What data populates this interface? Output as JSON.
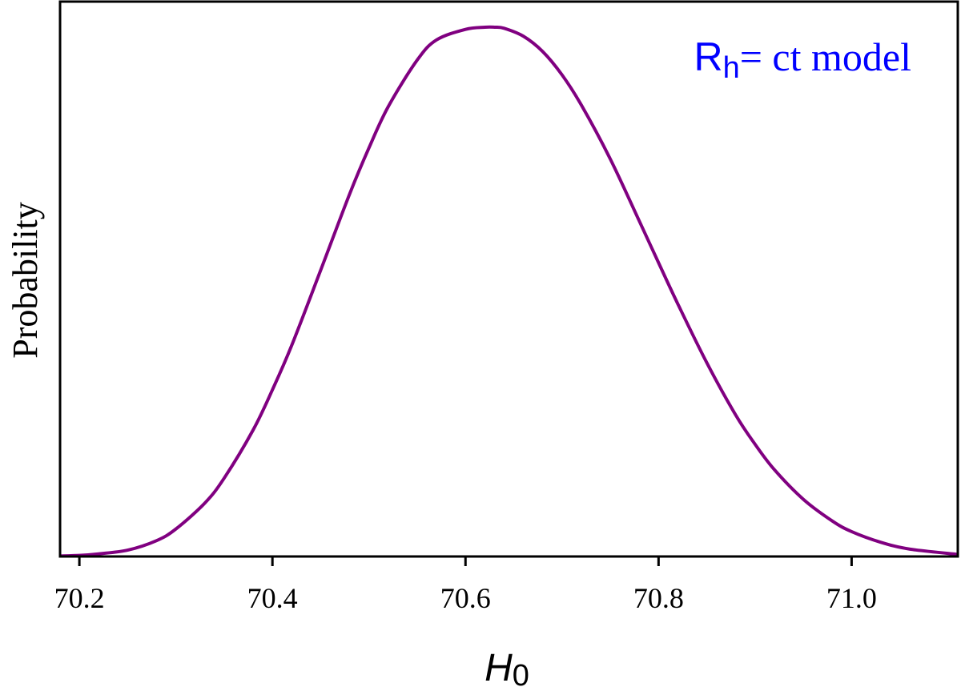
{
  "chart_data": {
    "type": "line",
    "title": "",
    "xlabel": "H",
    "xlabel_sub": "0",
    "ylabel": "Probability",
    "xlim": [
      70.18,
      71.11
    ],
    "ylim": [
      0,
      1.0
    ],
    "xticks": [
      70.2,
      70.4,
      70.6,
      70.8,
      71.0
    ],
    "xtick_labels": [
      "70.2",
      "70.4",
      "70.6",
      "70.8",
      "71.0"
    ],
    "yticks_shown": false,
    "grid": false,
    "legend": "none",
    "annotation": {
      "prefix": "R",
      "subscript": "h",
      "suffix": "= ct model",
      "color": "#0000ff",
      "placement": "top-right"
    },
    "series": [
      {
        "color": "#800080",
        "x": [
          70.18,
          70.2,
          70.22,
          70.25,
          70.28,
          70.3,
          70.33,
          70.35,
          70.38,
          70.4,
          70.42,
          70.45,
          70.48,
          70.5,
          70.52,
          70.55,
          70.57,
          70.6,
          70.62,
          70.63,
          70.64,
          70.66,
          70.68,
          70.7,
          70.72,
          70.75,
          70.78,
          70.8,
          70.82,
          70.85,
          70.88,
          70.9,
          70.92,
          70.95,
          70.98,
          71.0,
          71.03,
          71.06,
          71.11
        ],
        "y": [
          0.001,
          0.002,
          0.005,
          0.012,
          0.03,
          0.052,
          0.101,
          0.148,
          0.239,
          0.315,
          0.399,
          0.541,
          0.685,
          0.772,
          0.85,
          0.938,
          0.976,
          0.996,
          1.0,
          1.0,
          0.998,
          0.983,
          0.954,
          0.91,
          0.853,
          0.751,
          0.634,
          0.555,
          0.477,
          0.366,
          0.267,
          0.212,
          0.164,
          0.108,
          0.067,
          0.047,
          0.027,
          0.014,
          0.004
        ]
      }
    ]
  }
}
